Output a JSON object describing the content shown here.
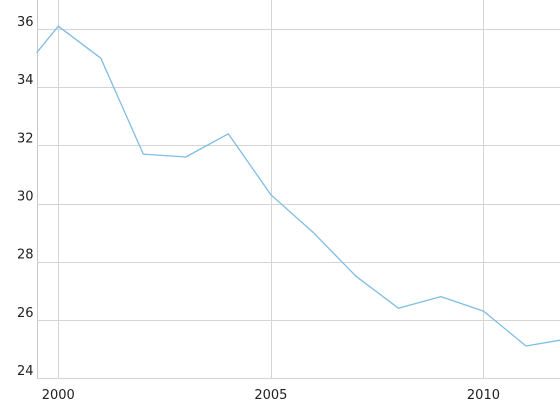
{
  "chart_data": {
    "type": "line",
    "title": "",
    "xlabel": "",
    "ylabel": "",
    "xlim": [
      1999.5,
      2011.8
    ],
    "ylim": [
      24,
      37
    ],
    "x_ticks": [
      2000,
      2005,
      2010
    ],
    "x_tick_labels": [
      "2000",
      "2005",
      "2010"
    ],
    "y_ticks": [
      24,
      26,
      28,
      30,
      32,
      34,
      36
    ],
    "y_tick_labels": [
      "24",
      "26",
      "28",
      "30",
      "32",
      "34",
      "36"
    ],
    "grid": true,
    "legend": "none",
    "series": [
      {
        "color": "#7fbde4",
        "x": [
          1999.5,
          2000,
          2001,
          2002,
          2003,
          2004,
          2005,
          2006,
          2007,
          2008,
          2009,
          2010,
          2011,
          2011.8
        ],
        "values": [
          35.2,
          36.1,
          35.0,
          31.7,
          31.6,
          32.4,
          30.3,
          29.0,
          27.5,
          26.4,
          26.8,
          26.3,
          25.1,
          25.3
        ]
      }
    ]
  }
}
